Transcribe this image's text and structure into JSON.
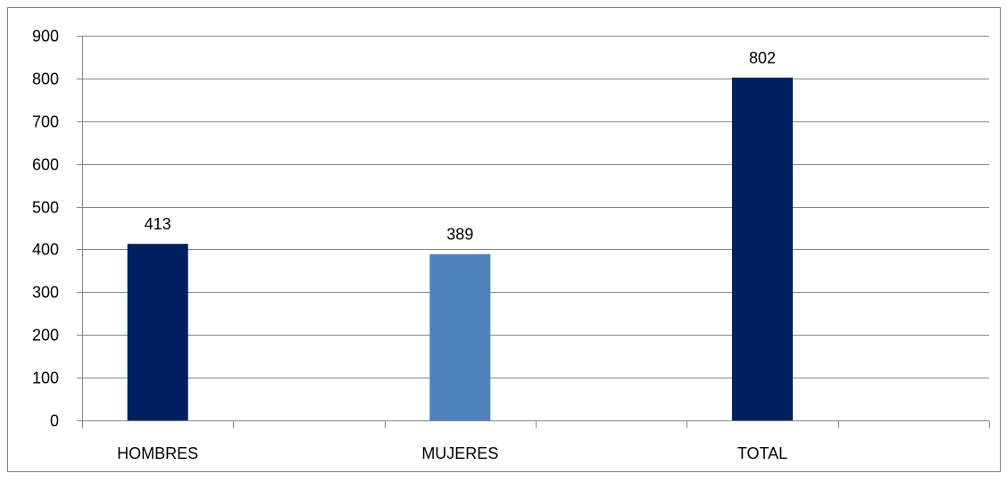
{
  "chart_data": {
    "type": "bar",
    "title": "",
    "xlabel": "",
    "ylabel": "",
    "categories": [
      "HOMBRES",
      "MUJERES",
      "TOTAL"
    ],
    "values": [
      413,
      389,
      802
    ],
    "data_labels": [
      "413",
      "389",
      "802"
    ],
    "bar_colors": [
      "#002060",
      "#4f81bd",
      "#002060"
    ],
    "ylim": [
      0,
      900
    ],
    "yticks": [
      0,
      100,
      200,
      300,
      400,
      500,
      600,
      700,
      800,
      900
    ],
    "ytick_labels": [
      "0",
      "100",
      "200",
      "300",
      "400",
      "500",
      "600",
      "700",
      "800",
      "900"
    ],
    "grid": true,
    "legend": "none"
  }
}
